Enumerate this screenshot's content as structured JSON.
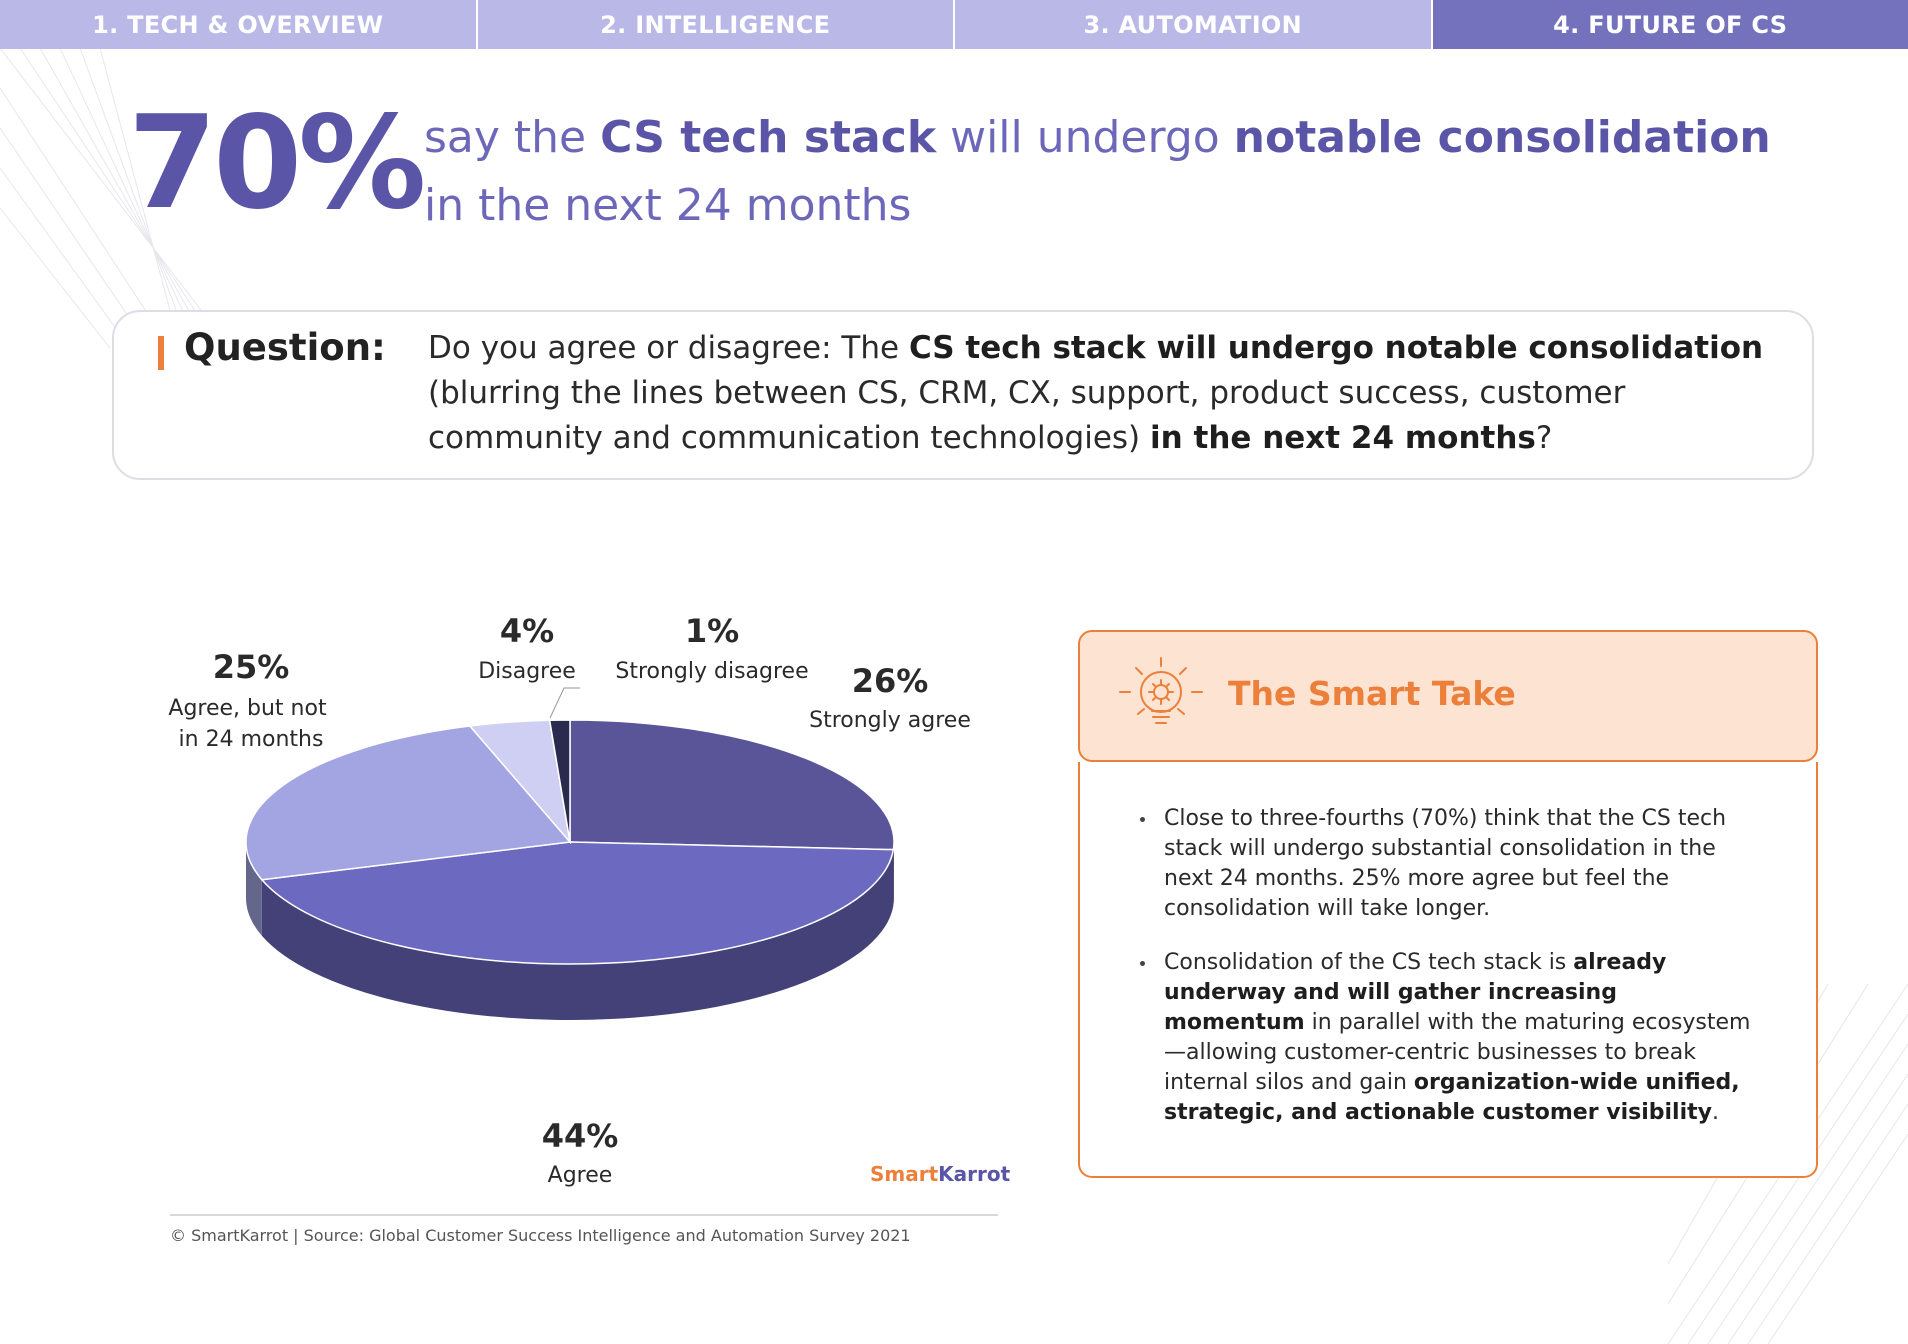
{
  "nav": {
    "tabs": [
      {
        "label": "1. TECH & OVERVIEW"
      },
      {
        "label": "2. INTELLIGENCE"
      },
      {
        "label": "3. AUTOMATION"
      },
      {
        "label": "4. FUTURE OF CS",
        "active": true
      }
    ]
  },
  "headline": {
    "stat": "70%",
    "line1_pre": "say the ",
    "line1_b1": "CS tech stack",
    "line1_mid": " will undergo ",
    "line1_b2": "notable consolidation",
    "line2": "in the next 24 months"
  },
  "question": {
    "label": "Question:",
    "t1": "Do you agree or disagree: The ",
    "t1_bold": "CS tech stack will undergo notable consolidation",
    "t2": " (blurring the lines between CS, CRM, CX, support, product success, customer community and communication technologies) ",
    "t2_bold": "in the next 24 months",
    "t3": "?"
  },
  "chart_data": {
    "type": "pie",
    "slices": [
      {
        "label": "Strongly agree",
        "pct_label": "26%",
        "value": 26,
        "color": "#5a5599"
      },
      {
        "label": "Agree",
        "pct_label": "44%",
        "value": 44,
        "color": "#6c69c0"
      },
      {
        "label": "Agree, but not in 24 months",
        "pct_label": "25%",
        "value": 25,
        "color": "#a3a5e2"
      },
      {
        "label": "Disagree",
        "pct_label": "4%",
        "value": 4,
        "color": "#cfcff4"
      },
      {
        "label": "Strongly disagree",
        "pct_label": "1%",
        "value": 1,
        "color": "#2a2a4e"
      }
    ],
    "annotation": "© SmartKarrot | Source: Global Customer Success Intelligence and Automation Survey 2021"
  },
  "brand": {
    "part1": "Smart",
    "part2": "Karrot"
  },
  "take": {
    "title": "The Smart Take",
    "b1": "Close to three-fourths (70%) think that the CS tech stack will undergo substantial consolidation in the next 24 months. 25% more agree but feel the consolidation will take longer.",
    "b2_pre": "Consolidation of the CS tech stack is ",
    "b2_bold1": "already underway and will gather increasing momentum",
    "b2_mid": " in parallel with the maturing ecosystem—allowing customer-centric businesses to break internal silos and gain ",
    "b2_bold2": "organization-wide unified, strategic, and actionable customer visibility",
    "b2_end": "."
  },
  "colors": {
    "accent_orange": "#ec7f3a",
    "brand_purple": "#5a55a6",
    "tab_bg": "#b9b8e6",
    "tab_active_bg": "#7472bd"
  }
}
